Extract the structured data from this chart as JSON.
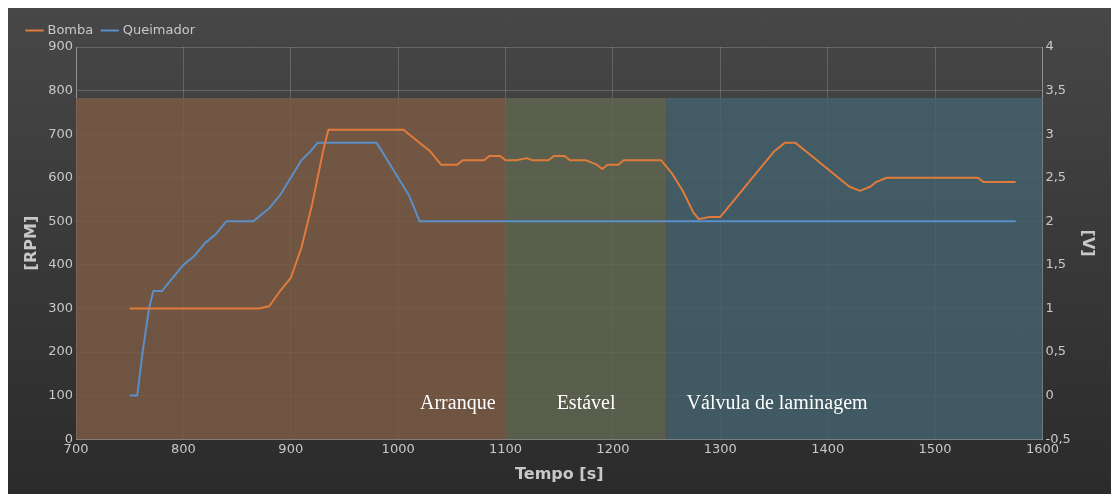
{
  "chart_data": {
    "type": "line",
    "xlabel": "Tempo [s]",
    "ylabel": "[RPM]",
    "y2label": "[V]",
    "xlim": [
      700,
      1600
    ],
    "xticks": [
      700,
      800,
      900,
      1000,
      1100,
      1200,
      1300,
      1400,
      1500,
      1600
    ],
    "ylim": [
      0,
      900
    ],
    "yticks": [
      0,
      100,
      200,
      300,
      400,
      500,
      600,
      700,
      800,
      900
    ],
    "y2lim": [
      -0.5,
      4
    ],
    "y2ticks": [
      {
        "value": -0.5,
        "label": "-0,5"
      },
      0,
      {
        "value": 0.5,
        "label": "0,5"
      },
      1,
      {
        "value": 1.5,
        "label": "1,5"
      },
      2,
      {
        "value": 2.5,
        "label": "2,5"
      },
      3,
      {
        "value": 3.5,
        "label": "3,5"
      },
      4
    ],
    "grid": true,
    "legend": "top left",
    "marker": "none",
    "line_style": "solid",
    "bands": [
      {
        "axis": "x",
        "from": 700,
        "to": 1100,
        "label": "Arranque",
        "color": "#7a5a45"
      },
      {
        "axis": "x",
        "from": 1100,
        "to": 1250,
        "label": "Estável",
        "color": "#5f6650"
      },
      {
        "axis": "x",
        "from": 1250,
        "to": 1600,
        "label": "Válvula de laminagem",
        "color": "#44606c"
      }
    ],
    "series": [
      {
        "name": "Bomba",
        "color": "#e07b39",
        "x": [
          750,
          870,
          880,
          890,
          900,
          910,
          920,
          930,
          935,
          1005,
          1015,
          1030,
          1040,
          1055,
          1060,
          1080,
          1085,
          1095,
          1100,
          1110,
          1120,
          1125,
          1140,
          1145,
          1155,
          1160,
          1175,
          1185,
          1190,
          1195,
          1205,
          1210,
          1245,
          1255,
          1265,
          1275,
          1280,
          1290,
          1300,
          1310,
          1320,
          1330,
          1340,
          1350,
          1360,
          1370,
          1380,
          1390,
          1400,
          1410,
          1420,
          1430,
          1440,
          1445,
          1455,
          1540,
          1545,
          1575
        ],
        "values": [
          300,
          300,
          305,
          340,
          370,
          440,
          540,
          660,
          710,
          710,
          690,
          660,
          630,
          630,
          640,
          640,
          650,
          650,
          640,
          640,
          645,
          640,
          640,
          650,
          650,
          640,
          640,
          630,
          620,
          630,
          630,
          640,
          640,
          610,
          570,
          520,
          505,
          510,
          510,
          540,
          570,
          600,
          630,
          660,
          680,
          680,
          660,
          640,
          620,
          600,
          580,
          570,
          580,
          590,
          600,
          600,
          590,
          590
        ]
      },
      {
        "name": "Queimador",
        "color": "#5b8fc7",
        "axis": "y2",
        "x": [
          750,
          757,
          762,
          768,
          772,
          780,
          790,
          800,
          810,
          820,
          830,
          840,
          865,
          880,
          890,
          900,
          910,
          918,
          925,
          980,
          990,
          1000,
          1010,
          1020,
          1575
        ],
        "values": [
          0,
          0,
          0.5,
          1,
          1.2,
          1.2,
          1.35,
          1.5,
          1.6,
          1.75,
          1.85,
          2,
          2,
          2.15,
          2.3,
          2.5,
          2.7,
          2.8,
          2.9,
          2.9,
          2.7,
          2.5,
          2.3,
          2,
          2
        ]
      }
    ]
  }
}
